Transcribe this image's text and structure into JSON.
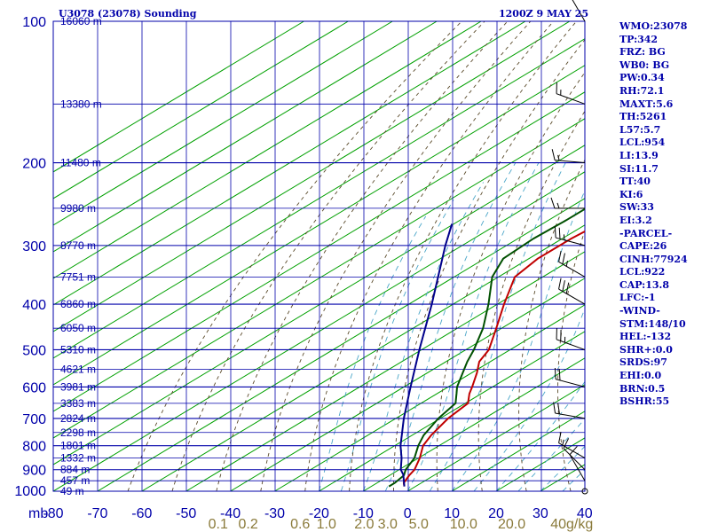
{
  "header": {
    "station_title": "U3078 (23078) Sounding",
    "valid_time": "1200Z  9 MAY 25"
  },
  "indices": [
    "WMO:23078",
    "TP:342",
    "FRZ: BG",
    "WB0: BG",
    "PW:0.34",
    "RH:72.1",
    "MAXT:5.6",
    "TH:5261",
    "L57:5.7",
    "LCL:954",
    "LI:13.9",
    "SI:11.7",
    "TT:40",
    "KI:6",
    "SW:33",
    "EI:3.2",
    "-PARCEL-",
    "CAPE:26",
    "CINH:77924",
    "LCL:922",
    "CAP:13.8",
    "LFC:-1",
    "-WIND-",
    "STM:148/10",
    "HEL:-132",
    "SHR+:0.0",
    "SRDS:97",
    "EHI:0.0",
    "BRN:0.5",
    "BSHR:55"
  ],
  "chart_data": {
    "type": "line",
    "title": "U3078 (23078) Sounding",
    "x_unit_label": "mb",
    "ylabel": "",
    "x_ticks": [
      "-80",
      "-70",
      "-60",
      "-50",
      "-40",
      "-30",
      "-20",
      "-10",
      "0",
      "10",
      "20",
      "30",
      "40"
    ],
    "xlim": [
      -80,
      40
    ],
    "skew_c_per_log_p": 76.7,
    "y_axis_log": true,
    "pressure_ticks": [
      "100",
      "200",
      "300",
      "400",
      "500",
      "600",
      "700",
      "800",
      "900",
      "1000"
    ],
    "pressure_tick_values": [
      100,
      200,
      300,
      400,
      500,
      600,
      700,
      800,
      900,
      1000
    ],
    "ylim": [
      1000,
      100
    ],
    "height_labels": [
      {
        "p": 100,
        "label": "16060 m"
      },
      {
        "p": 150,
        "label": "13380 m"
      },
      {
        "p": 200,
        "label": "11480 m"
      },
      {
        "p": 250,
        "label": "9980 m"
      },
      {
        "p": 300,
        "label": "8770 m"
      },
      {
        "p": 350,
        "label": "7751 m"
      },
      {
        "p": 400,
        "label": "6860 m"
      },
      {
        "p": 450,
        "label": "6050 m"
      },
      {
        "p": 500,
        "label": "5310 m"
      },
      {
        "p": 550,
        "label": "4621 m"
      },
      {
        "p": 600,
        "label": "3981 m"
      },
      {
        "p": 650,
        "label": "3383 m"
      },
      {
        "p": 700,
        "label": "2824 m"
      },
      {
        "p": 750,
        "label": "2298 m"
      },
      {
        "p": 800,
        "label": "1801 m"
      },
      {
        "p": 850,
        "label": "1332 m"
      },
      {
        "p": 900,
        "label": "884 m"
      },
      {
        "p": 950,
        "label": "457 m"
      },
      {
        "p": 1000,
        "label": "49 m"
      }
    ],
    "mixing_ratio_labels": [
      "0.1",
      "0.2",
      "0.6",
      "1.0",
      "2.0",
      "3.0",
      "5.0",
      "10.0",
      "20.0",
      "40g/kg"
    ],
    "mixing_ratio_values": [
      0.1,
      0.2,
      0.6,
      1.0,
      2.0,
      3.0,
      5.0,
      10.0,
      20.0,
      40.0
    ],
    "isotherm_interval_c": 10,
    "dry_adiabats_theta_k": [
      210,
      220,
      230,
      240,
      250,
      260,
      270,
      280,
      290,
      300,
      310,
      320,
      330,
      340,
      350,
      360,
      370,
      380,
      390,
      400,
      410,
      420,
      430,
      440,
      450,
      460,
      470,
      480
    ],
    "moist_adiabats_thetaw_c": [
      -20,
      -15,
      -10,
      -5,
      0,
      5,
      10,
      15,
      20,
      25,
      30,
      35
    ],
    "series": [
      {
        "name": "Temperature",
        "color": "#c00000",
        "p": [
          977,
          960,
          925,
          900,
          850,
          800,
          760,
          700,
          650,
          620,
          600,
          560,
          530,
          500,
          450,
          400,
          350,
          320,
          290,
          265,
          250,
          225,
          200,
          175,
          150,
          140,
          120,
          100
        ],
        "t": [
          -2.5,
          -4.0,
          -5.6,
          -6.5,
          -9.7,
          -13.6,
          -15.7,
          -18.2,
          -19.4,
          -22.7,
          -24.6,
          -28.8,
          -32.5,
          -34.8,
          -41.2,
          -48.5,
          -56.3,
          -58.0,
          -58.0,
          -57.0,
          -54.4,
          -55.5,
          -56.5,
          -57.0,
          -58.0,
          -59.3,
          -63.0,
          -67.2
        ]
      },
      {
        "name": "Dewpoint",
        "color": "#005000",
        "p": [
          977,
          960,
          925,
          900,
          850,
          800,
          760,
          700,
          650,
          620,
          600,
          560,
          530,
          500,
          450,
          400,
          350,
          320,
          290,
          265,
          250,
          225,
          200,
          175,
          150,
          140,
          120,
          100
        ],
        "t": [
          -6.0,
          -6.0,
          -6.8,
          -8.5,
          -10.9,
          -14.7,
          -17.4,
          -20.4,
          -22.2,
          -25.6,
          -28.0,
          -32.0,
          -35.2,
          -38.2,
          -44.2,
          -52.0,
          -61.4,
          -65.8,
          -66.5,
          -66.0,
          -66.0,
          -70.7,
          -75.2,
          -78.5,
          -82.7,
          -85.9,
          -87.4,
          -90.4
        ]
      },
      {
        "name": "Parcel",
        "color": "#00008b",
        "p": [
          977,
          922,
          900,
          850,
          800,
          700,
          600,
          500,
          400,
          300,
          270
        ],
        "t": [
          -2.5,
          -7.2,
          -9.6,
          -13.8,
          -18.7,
          -28.2,
          -38.5,
          -50.5,
          -64.8,
          -83.8,
          -90.4
        ]
      }
    ],
    "wind_barbs": [
      {
        "p": 1000,
        "dir_deg": 180,
        "spd_kt": 0
      },
      {
        "p": 950,
        "dir_deg": 330,
        "spd_kt": 10
      },
      {
        "p": 900,
        "dir_deg": 315,
        "spd_kt": 10
      },
      {
        "p": 850,
        "dir_deg": 300,
        "spd_kt": 15
      },
      {
        "p": 700,
        "dir_deg": 280,
        "spd_kt": 20
      },
      {
        "p": 600,
        "dir_deg": 285,
        "spd_kt": 20
      },
      {
        "p": 500,
        "dir_deg": 290,
        "spd_kt": 25
      },
      {
        "p": 400,
        "dir_deg": 300,
        "spd_kt": 30
      },
      {
        "p": 350,
        "dir_deg": 300,
        "spd_kt": 25
      },
      {
        "p": 300,
        "dir_deg": 285,
        "spd_kt": 25
      },
      {
        "p": 250,
        "dir_deg": 270,
        "spd_kt": 15
      },
      {
        "p": 200,
        "dir_deg": 275,
        "spd_kt": 15
      },
      {
        "p": 150,
        "dir_deg": 290,
        "spd_kt": 15
      },
      {
        "p": 100,
        "dir_deg": 330,
        "spd_kt": 20
      }
    ],
    "colors": {
      "frame": "#0000aa",
      "isotherm": "#00a000",
      "dry_adiabat": "#5a4a2a",
      "moist_adiabat": "#4aa6c8",
      "mixing_ratio_label": "#8a7a3a",
      "barb": "#000000"
    }
  }
}
